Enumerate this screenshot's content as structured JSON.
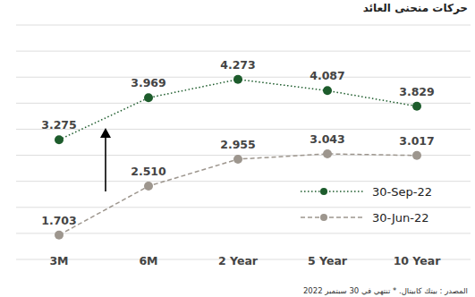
{
  "chart_data": {
    "type": "line",
    "title": "حركات منحنى العائد",
    "source": "المصدر : بيتك كابيتال. * تنتهي في 30 سبتمبر 2022",
    "categories": [
      "3M",
      "6M",
      "2 Year",
      "5 Year",
      "10 Year"
    ],
    "series": [
      {
        "name": "30-Sep-22",
        "color": "#1d5c2c",
        "line_style": "dotted",
        "marker": "circle",
        "values": [
          3.275,
          3.969,
          4.273,
          4.087,
          3.829
        ],
        "value_labels": [
          "3.275",
          "3.969",
          "4.273",
          "4.087",
          "3.829"
        ]
      },
      {
        "name": "30-Jun-22",
        "color": "#9d968e",
        "line_style": "dashed",
        "marker": "circle",
        "values": [
          1.703,
          2.51,
          2.955,
          3.043,
          3.017
        ],
        "value_labels": [
          "1.703",
          "2.510",
          "2.955",
          "3.043",
          "3.017"
        ]
      }
    ],
    "ylim": [
      1.3,
      5.17
    ],
    "yticks": [
      1.3,
      1.73,
      2.16,
      2.59,
      3.02,
      3.45,
      3.88,
      4.31,
      4.74,
      5.17
    ],
    "grid": true,
    "tick_labels": "x",
    "data_labels": true,
    "legend": "lower right"
  }
}
